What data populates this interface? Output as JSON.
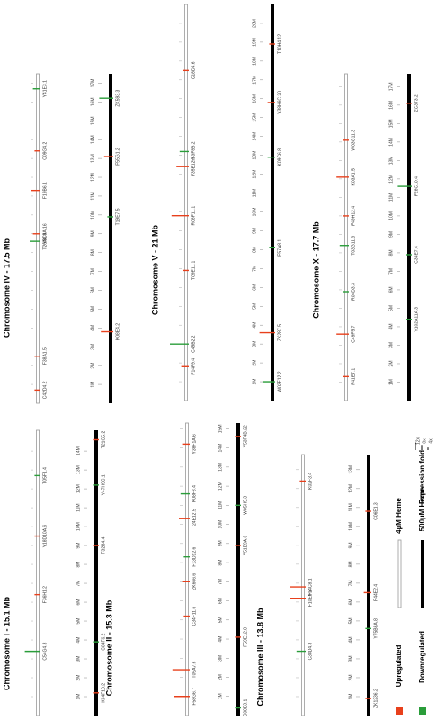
{
  "chromosomes": [
    {
      "title": "Chromosome I - 15.1 Mb",
      "length": 15.1,
      "scale": [
        {
          "value": 1,
          "label": "1M"
        },
        {
          "value": 2,
          "label": "2M"
        },
        {
          "value": 3,
          "label": "3M"
        },
        {
          "value": 4,
          "label": "4M"
        },
        {
          "value": 5,
          "label": "5M"
        },
        {
          "value": 6,
          "label": "6M"
        },
        {
          "value": 7,
          "label": "7M"
        },
        {
          "value": 8,
          "label": "8M"
        },
        {
          "value": 9,
          "label": "9M"
        },
        {
          "value": 10,
          "label": "10M"
        },
        {
          "value": 11,
          "label": "11M"
        },
        {
          "value": 12,
          "label": "12M"
        },
        {
          "value": 13,
          "label": "13M"
        },
        {
          "value": 14,
          "label": "14M"
        }
      ],
      "genes": [
        {
          "label": "C54G4.3",
          "pos": 3.4,
          "track": "low",
          "dir": "down",
          "fold": 8
        },
        {
          "label": "F36H1.2",
          "pos": 6.4,
          "track": "low",
          "dir": "up",
          "fold": 2
        },
        {
          "label": "Y18D10A.6",
          "pos": 9.5,
          "track": "low",
          "dir": "up",
          "fold": 2
        },
        {
          "label": "T05F1.4",
          "pos": 12.7,
          "track": "low",
          "dir": "down",
          "fold": 2
        },
        {
          "label": "K04F10.2",
          "pos": 1.2,
          "track": "high",
          "dir": "up",
          "fold": 2
        },
        {
          "label": "C04F6.2",
          "pos": 3.9,
          "track": "high",
          "dir": "down",
          "fold": 2
        },
        {
          "label": "F32B4.4",
          "pos": 9.0,
          "track": "high",
          "dir": "up",
          "fold": 2
        },
        {
          "label": "Y47H9C.1",
          "pos": 12.2,
          "track": "high",
          "dir": "down",
          "fold": 2
        },
        {
          "label": "T21G5.2",
          "pos": 14.6,
          "track": "high",
          "dir": "up",
          "fold": 2
        }
      ]
    },
    {
      "title": "Chromosome II - 15.3 Mb",
      "length": 15.3,
      "scale": [
        {
          "value": 1,
          "label": "1M"
        },
        {
          "value": 2,
          "label": "2M"
        },
        {
          "value": 3,
          "label": "3M"
        },
        {
          "value": 4,
          "label": "4M"
        },
        {
          "value": 5,
          "label": "5M"
        },
        {
          "value": 6,
          "label": "6M"
        },
        {
          "value": 7,
          "label": "7M"
        },
        {
          "value": 8,
          "label": "8M"
        },
        {
          "value": 9,
          "label": "9M"
        },
        {
          "value": 10,
          "label": "10M"
        },
        {
          "value": 11,
          "label": "11M"
        },
        {
          "value": 12,
          "label": "12M"
        },
        {
          "value": 13,
          "label": "13M"
        },
        {
          "value": 14,
          "label": "14M"
        },
        {
          "value": 15,
          "label": "15M"
        }
      ],
      "genes": [
        {
          "label": "F58G6.7",
          "pos": 1.0,
          "track": "low",
          "dir": "up",
          "fold": 8
        },
        {
          "label": "T05A7.6",
          "pos": 2.4,
          "track": "low",
          "dir": "up",
          "fold": 9
        },
        {
          "label": "C34F11.6",
          "pos": 5.2,
          "track": "low",
          "dir": "up",
          "fold": 2
        },
        {
          "label": "ZK666.6",
          "pos": 7.0,
          "track": "low",
          "dir": "up",
          "fold": 3
        },
        {
          "label": "F13D12.6",
          "pos": 8.3,
          "track": "low",
          "dir": "down",
          "fold": 2
        },
        {
          "label": "T24E12.5",
          "pos": 10.3,
          "track": "low",
          "dir": "up",
          "fold": 5
        },
        {
          "label": "K08F8.4",
          "pos": 11.6,
          "track": "low",
          "dir": "down",
          "fold": 4
        },
        {
          "label": "Y38F1A.6",
          "pos": 14.2,
          "track": "low",
          "dir": "up",
          "fold": 3
        },
        {
          "label": "C08E3.1",
          "pos": 0.4,
          "track": "high",
          "dir": "down",
          "fold": 2
        },
        {
          "label": "F59E12.8",
          "pos": 4.1,
          "track": "high",
          "dir": "up",
          "fold": 2
        },
        {
          "label": "Y51B9A.8",
          "pos": 8.9,
          "track": "high",
          "dir": "up",
          "fold": 2
        },
        {
          "label": "W05H5.3",
          "pos": 11.0,
          "track": "high",
          "dir": "down",
          "fold": 2
        },
        {
          "label": "Y53F4B.22",
          "pos": 14.6,
          "track": "high",
          "dir": "up",
          "fold": 2
        }
      ]
    },
    {
      "title": "Chromosome III - 13.8 Mb",
      "length": 13.8,
      "scale": [
        {
          "value": 1,
          "label": "1M"
        },
        {
          "value": 2,
          "label": "2M"
        },
        {
          "value": 3,
          "label": "3M"
        },
        {
          "value": 4,
          "label": "4M"
        },
        {
          "value": 5,
          "label": "5M"
        },
        {
          "value": 6,
          "label": "6M"
        },
        {
          "value": 7,
          "label": "7M"
        },
        {
          "value": 8,
          "label": "8M"
        },
        {
          "value": 9,
          "label": "9M"
        },
        {
          "value": 10,
          "label": "10M"
        },
        {
          "value": 11,
          "label": "11M"
        },
        {
          "value": 12,
          "label": "12M"
        },
        {
          "value": 13,
          "label": "13M"
        }
      ],
      "genes": [
        {
          "label": "C38D4.3",
          "pos": 3.4,
          "track": "low",
          "dir": "down",
          "fold": 4
        },
        {
          "label": "F10E9.2",
          "pos": 6.2,
          "track": "low",
          "dir": "up",
          "fold": 8
        },
        {
          "label": "F54C8.1",
          "pos": 6.8,
          "track": "low",
          "dir": "up",
          "fold": 8
        },
        {
          "label": "K02F3.4",
          "pos": 12.4,
          "track": "low",
          "dir": "up",
          "fold": 2
        },
        {
          "label": "ZK1236.2",
          "pos": 0.9,
          "track": "high",
          "dir": "up",
          "fold": 2
        },
        {
          "label": "Y75B8A.8",
          "pos": 4.6,
          "track": "high",
          "dir": "down",
          "fold": 2
        },
        {
          "label": "F44E2.4",
          "pos": 6.5,
          "track": "high",
          "dir": "up",
          "fold": 3
        },
        {
          "label": "C06E1.3",
          "pos": 10.8,
          "track": "high",
          "dir": "up",
          "fold": 2
        }
      ]
    },
    {
      "title": "Chromosome IV - 17.5 Mb",
      "length": 17.5,
      "scale": [
        {
          "value": 1,
          "label": "1M"
        },
        {
          "value": 2,
          "label": "2M"
        },
        {
          "value": 3,
          "label": "3M"
        },
        {
          "value": 4,
          "label": "4M"
        },
        {
          "value": 5,
          "label": "5M"
        },
        {
          "value": 6,
          "label": "6M"
        },
        {
          "value": 7,
          "label": "7M"
        },
        {
          "value": 8,
          "label": "8M"
        },
        {
          "value": 9,
          "label": "9M"
        },
        {
          "value": 10,
          "label": "10M"
        },
        {
          "value": 11,
          "label": "11M"
        },
        {
          "value": 12,
          "label": "12M"
        },
        {
          "value": 13,
          "label": "13M"
        },
        {
          "value": 14,
          "label": "14M"
        },
        {
          "value": 15,
          "label": "15M"
        },
        {
          "value": 16,
          "label": "16M"
        },
        {
          "value": 17,
          "label": "17M"
        }
      ],
      "genes": [
        {
          "label": "C42D4.2",
          "pos": 0.7,
          "track": "low",
          "dir": "up",
          "fold": 2
        },
        {
          "label": "F38A1.5",
          "pos": 2.5,
          "track": "low",
          "dir": "up",
          "fold": 2
        },
        {
          "label": "T26A8.4",
          "pos": 8.6,
          "track": "low",
          "dir": "down",
          "fold": 5
        },
        {
          "label": "Y9C9A.16",
          "pos": 9.0,
          "track": "low",
          "dir": "up",
          "fold": 3
        },
        {
          "label": "F19B6.1",
          "pos": 11.3,
          "track": "low",
          "dir": "up",
          "fold": 4
        },
        {
          "label": "C09G4.2",
          "pos": 13.4,
          "track": "low",
          "dir": "up",
          "fold": 2
        },
        {
          "label": "Y41E3.1",
          "pos": 16.7,
          "track": "low",
          "dir": "down",
          "fold": 3
        },
        {
          "label": "K08E4.2",
          "pos": 3.8,
          "track": "high",
          "dir": "up",
          "fold": 6
        },
        {
          "label": "T19E7.5",
          "pos": 9.9,
          "track": "high",
          "dir": "down",
          "fold": 2
        },
        {
          "label": "F55G1.2",
          "pos": 13.1,
          "track": "high",
          "dir": "up",
          "fold": 4
        },
        {
          "label": "ZK593.3",
          "pos": 16.2,
          "track": "high",
          "dir": "down",
          "fold": 7
        }
      ]
    },
    {
      "title": "Chromosome V - 21 Mb",
      "length": 21,
      "scale": [
        {
          "value": 1,
          "label": "1M"
        },
        {
          "value": 2,
          "label": "2M"
        },
        {
          "value": 3,
          "label": "3M"
        },
        {
          "value": 4,
          "label": "4M"
        },
        {
          "value": 5,
          "label": "5M"
        },
        {
          "value": 6,
          "label": "6M"
        },
        {
          "value": 7,
          "label": "7M"
        },
        {
          "value": 8,
          "label": "8M"
        },
        {
          "value": 9,
          "label": "9M"
        },
        {
          "value": 10,
          "label": "10M"
        },
        {
          "value": 11,
          "label": "11M"
        },
        {
          "value": 12,
          "label": "12M"
        },
        {
          "value": 13,
          "label": "13M"
        },
        {
          "value": 14,
          "label": "14M"
        },
        {
          "value": 15,
          "label": "15M"
        },
        {
          "value": 16,
          "label": "16M"
        },
        {
          "value": 17,
          "label": "17M"
        },
        {
          "value": 18,
          "label": "18M"
        },
        {
          "value": 19,
          "label": "19M"
        },
        {
          "value": 20,
          "label": "20M"
        }
      ],
      "genes": [
        {
          "label": "F14F9.4",
          "pos": 1.8,
          "track": "low",
          "dir": "up",
          "fold": 3
        },
        {
          "label": "C45B2.2",
          "pos": 3.0,
          "track": "low",
          "dir": "down",
          "fold": 10
        },
        {
          "label": "T09E11.1",
          "pos": 6.9,
          "track": "low",
          "dir": "up",
          "fold": 2
        },
        {
          "label": "R08F11.1",
          "pos": 9.8,
          "track": "low",
          "dir": "up",
          "fold": 9
        },
        {
          "label": "F35E12.5",
          "pos": 12.4,
          "track": "low",
          "dir": "up",
          "fold": 6
        },
        {
          "label": "Y43F8B.2",
          "pos": 13.2,
          "track": "low",
          "dir": "down",
          "fold": 4
        },
        {
          "label": "C18D4.6",
          "pos": 17.5,
          "track": "low",
          "dir": "up",
          "fold": 2
        },
        {
          "label": "W02F12.2",
          "pos": 1.0,
          "track": "high",
          "dir": "down",
          "fold": 6
        },
        {
          "label": "ZK287.5",
          "pos": 3.6,
          "track": "high",
          "dir": "up",
          "fold": 8
        },
        {
          "label": "F57A8.1",
          "pos": 8.1,
          "track": "high",
          "dir": "down",
          "fold": 2
        },
        {
          "label": "K09C6.8",
          "pos": 12.9,
          "track": "high",
          "dir": "down",
          "fold": 3
        },
        {
          "label": "Y38H6C.20",
          "pos": 15.8,
          "track": "high",
          "dir": "up",
          "fold": 3
        },
        {
          "label": "T10H4.12",
          "pos": 18.9,
          "track": "high",
          "dir": "up",
          "fold": 2
        }
      ]
    },
    {
      "title": "Chromosome X - 17.7 Mb",
      "length": 17.7,
      "scale": [
        {
          "value": 1,
          "label": "1M"
        },
        {
          "value": 2,
          "label": "2M"
        },
        {
          "value": 3,
          "label": "3M"
        },
        {
          "value": 4,
          "label": "4M"
        },
        {
          "value": 5,
          "label": "5M"
        },
        {
          "value": 6,
          "label": "6M"
        },
        {
          "value": 7,
          "label": "7M"
        },
        {
          "value": 8,
          "label": "8M"
        },
        {
          "value": 9,
          "label": "9M"
        },
        {
          "value": 10,
          "label": "10M"
        },
        {
          "value": 11,
          "label": "11M"
        },
        {
          "value": 12,
          "label": "12M"
        },
        {
          "value": 13,
          "label": "13M"
        },
        {
          "value": 14,
          "label": "14M"
        },
        {
          "value": 15,
          "label": "15M"
        },
        {
          "value": 16,
          "label": "16M"
        },
        {
          "value": 17,
          "label": "17M"
        }
      ],
      "genes": [
        {
          "label": "F41E7.1",
          "pos": 1.3,
          "track": "low",
          "dir": "up",
          "fold": 2
        },
        {
          "label": "C49F5.7",
          "pos": 3.6,
          "track": "low",
          "dir": "up",
          "fold": 6
        },
        {
          "label": "R04D3.3",
          "pos": 5.9,
          "track": "low",
          "dir": "down",
          "fold": 2
        },
        {
          "label": "T03G11.3",
          "pos": 8.4,
          "track": "low",
          "dir": "down",
          "fold": 4
        },
        {
          "label": "F49H12.4",
          "pos": 10.0,
          "track": "low",
          "dir": "up",
          "fold": 2
        },
        {
          "label": "K03A1.5",
          "pos": 12.1,
          "track": "low",
          "dir": "up",
          "fold": 6
        },
        {
          "label": "W03G11.3",
          "pos": 14.1,
          "track": "low",
          "dir": "up",
          "fold": 2
        },
        {
          "label": "Y102A11A.3",
          "pos": 4.4,
          "track": "high",
          "dir": "down",
          "fold": 2
        },
        {
          "label": "C34E7.4",
          "pos": 7.9,
          "track": "high",
          "dir": "down",
          "fold": 2
        },
        {
          "label": "F28C10.4",
          "pos": 11.6,
          "track": "high",
          "dir": "down",
          "fold": 7
        },
        {
          "label": "ZC373.2",
          "pos": 16.1,
          "track": "high",
          "dir": "up",
          "fold": 2
        }
      ]
    }
  ],
  "legend": {
    "up": "Upregulated",
    "down": "Downregulated",
    "low": "4µM Heme",
    "high": "500µM Heme",
    "fold_title": "Expression fold",
    "fold_scale": [
      {
        "value": 12,
        "label": "12x"
      },
      {
        "value": 8,
        "label": "8x"
      },
      {
        "value": 4,
        "label": "4x"
      }
    ],
    "up_color": "#e8401c",
    "down_color": "#2a9d3a"
  }
}
